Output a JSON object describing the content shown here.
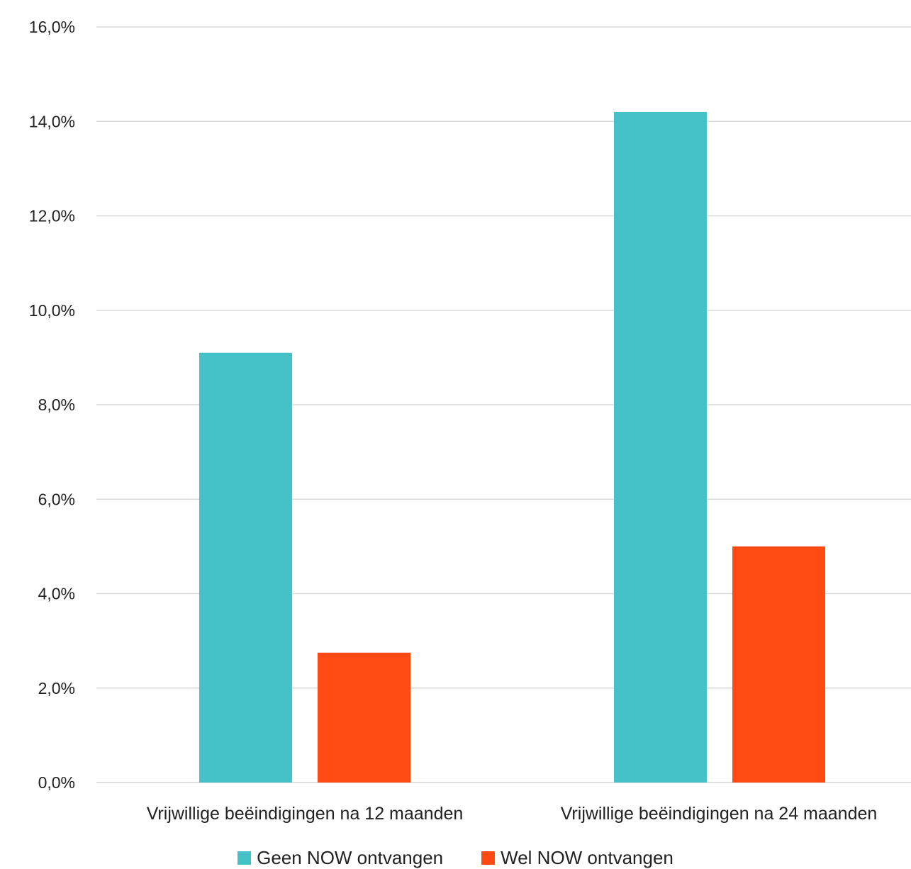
{
  "chart_data": {
    "type": "bar",
    "categories": [
      "Vrijwillige beëindigingen na 12 maanden",
      "Vrijwillige beëindigingen na 24 maanden"
    ],
    "series": [
      {
        "name": "Geen NOW ontvangen",
        "values": [
          9.1,
          14.2
        ],
        "color": "#44c2c8"
      },
      {
        "name": "Wel NOW ontvangen",
        "values": [
          2.75,
          5.0
        ],
        "color": "#ff4a14"
      }
    ],
    "yticks": [
      "0,0%",
      "2,0%",
      "4,0%",
      "6,0%",
      "8,0%",
      "10,0%",
      "12,0%",
      "14,0%",
      "16,0%"
    ],
    "ylim": [
      0,
      16
    ],
    "grid": true,
    "legend_position": "bottom"
  }
}
